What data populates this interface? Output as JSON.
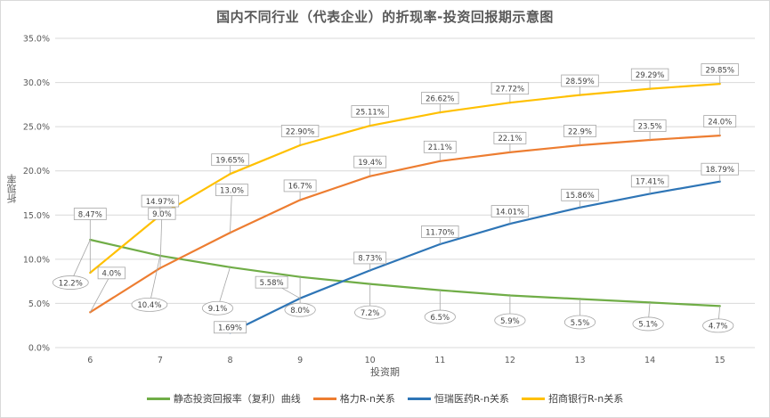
{
  "chart_data": {
    "type": "line",
    "title": "国内不同行业（代表企业）的折现率-投资回报期示意图",
    "xlabel": "投资期",
    "ylabel": "折现率",
    "x": [
      6,
      7,
      8,
      9,
      10,
      11,
      12,
      13,
      14,
      15
    ],
    "ylim": [
      0,
      35
    ],
    "yticks": [
      "0.0%",
      "5.0%",
      "10.0%",
      "15.0%",
      "20.0%",
      "25.0%",
      "30.0%",
      "35.0%"
    ],
    "grid": true,
    "legend_position": "bottom",
    "series": [
      {
        "name": "静态投资回报率（复利）曲线",
        "color": "#70ad47",
        "x": [
          6,
          7,
          8,
          9,
          10,
          11,
          12,
          13,
          14,
          15
        ],
        "values": [
          12.2,
          10.4,
          9.1,
          8.0,
          7.2,
          6.5,
          5.9,
          5.5,
          5.1,
          4.7
        ],
        "labels": [
          "12.2%",
          "10.4%",
          "9.1%",
          "8.0%",
          "7.2%",
          "6.5%",
          "5.9%",
          "5.5%",
          "5.1%",
          "4.7%"
        ]
      },
      {
        "name": "格力R-n关系",
        "color": "#ed7d31",
        "x": [
          6,
          7,
          8,
          9,
          10,
          11,
          12,
          13,
          14,
          15
        ],
        "values": [
          4.0,
          9.0,
          13.0,
          16.7,
          19.4,
          21.1,
          22.1,
          22.9,
          23.5,
          24.0
        ],
        "labels": [
          "4.0%",
          "9.0%",
          "13.0%",
          "16.7%",
          "19.4%",
          "21.1%",
          "22.1%",
          "22.9%",
          "23.5%",
          "24.0%"
        ]
      },
      {
        "name": "恒瑞医药R-n关系",
        "color": "#2e75b6",
        "x": [
          8,
          9,
          10,
          11,
          12,
          13,
          14,
          15
        ],
        "values": [
          1.69,
          5.58,
          8.73,
          11.7,
          14.01,
          15.86,
          17.41,
          18.79
        ],
        "labels": [
          "1.69%",
          "5.58%",
          "8.73%",
          "11.70%",
          "14.01%",
          "15.86%",
          "17.41%",
          "18.79%"
        ]
      },
      {
        "name": "招商银行R-n关系",
        "color": "#ffc000",
        "x": [
          6,
          7,
          8,
          9,
          10,
          11,
          12,
          13,
          14,
          15
        ],
        "values": [
          8.47,
          14.97,
          19.65,
          22.9,
          25.11,
          26.62,
          27.72,
          28.59,
          29.29,
          29.85
        ],
        "labels": [
          "8.47%",
          "14.97%",
          "19.65%",
          "22.90%",
          "25.11%",
          "26.62%",
          "27.72%",
          "28.59%",
          "29.29%",
          "29.85%"
        ]
      }
    ]
  }
}
